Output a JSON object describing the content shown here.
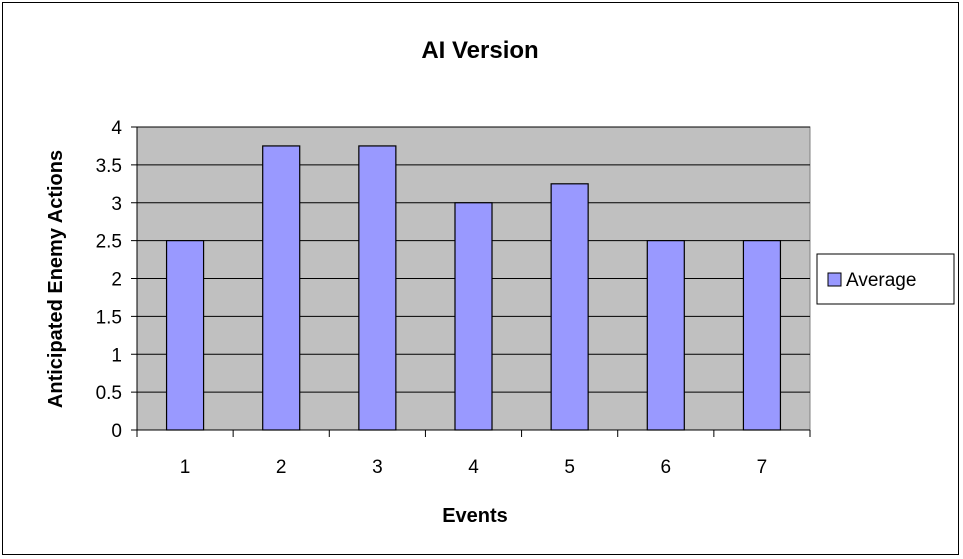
{
  "chart_data": {
    "type": "bar",
    "title": "AI Version",
    "xlabel": "Events",
    "ylabel": "Anticipated Enemy Actions",
    "categories": [
      "1",
      "2",
      "3",
      "4",
      "5",
      "6",
      "7"
    ],
    "series": [
      {
        "name": "Average",
        "values": [
          2.5,
          3.75,
          3.75,
          3.0,
          3.25,
          2.5,
          2.5
        ]
      }
    ],
    "ylim": [
      0,
      4
    ],
    "yticks": [
      "0",
      "0.5",
      "1",
      "1.5",
      "2",
      "2.5",
      "3",
      "3.5",
      "4"
    ],
    "grid": true,
    "legend_position": "right",
    "colors": {
      "bar_fill": "#9999ff",
      "plot_background": "#c0c0c0",
      "gridline": "#000000"
    }
  }
}
